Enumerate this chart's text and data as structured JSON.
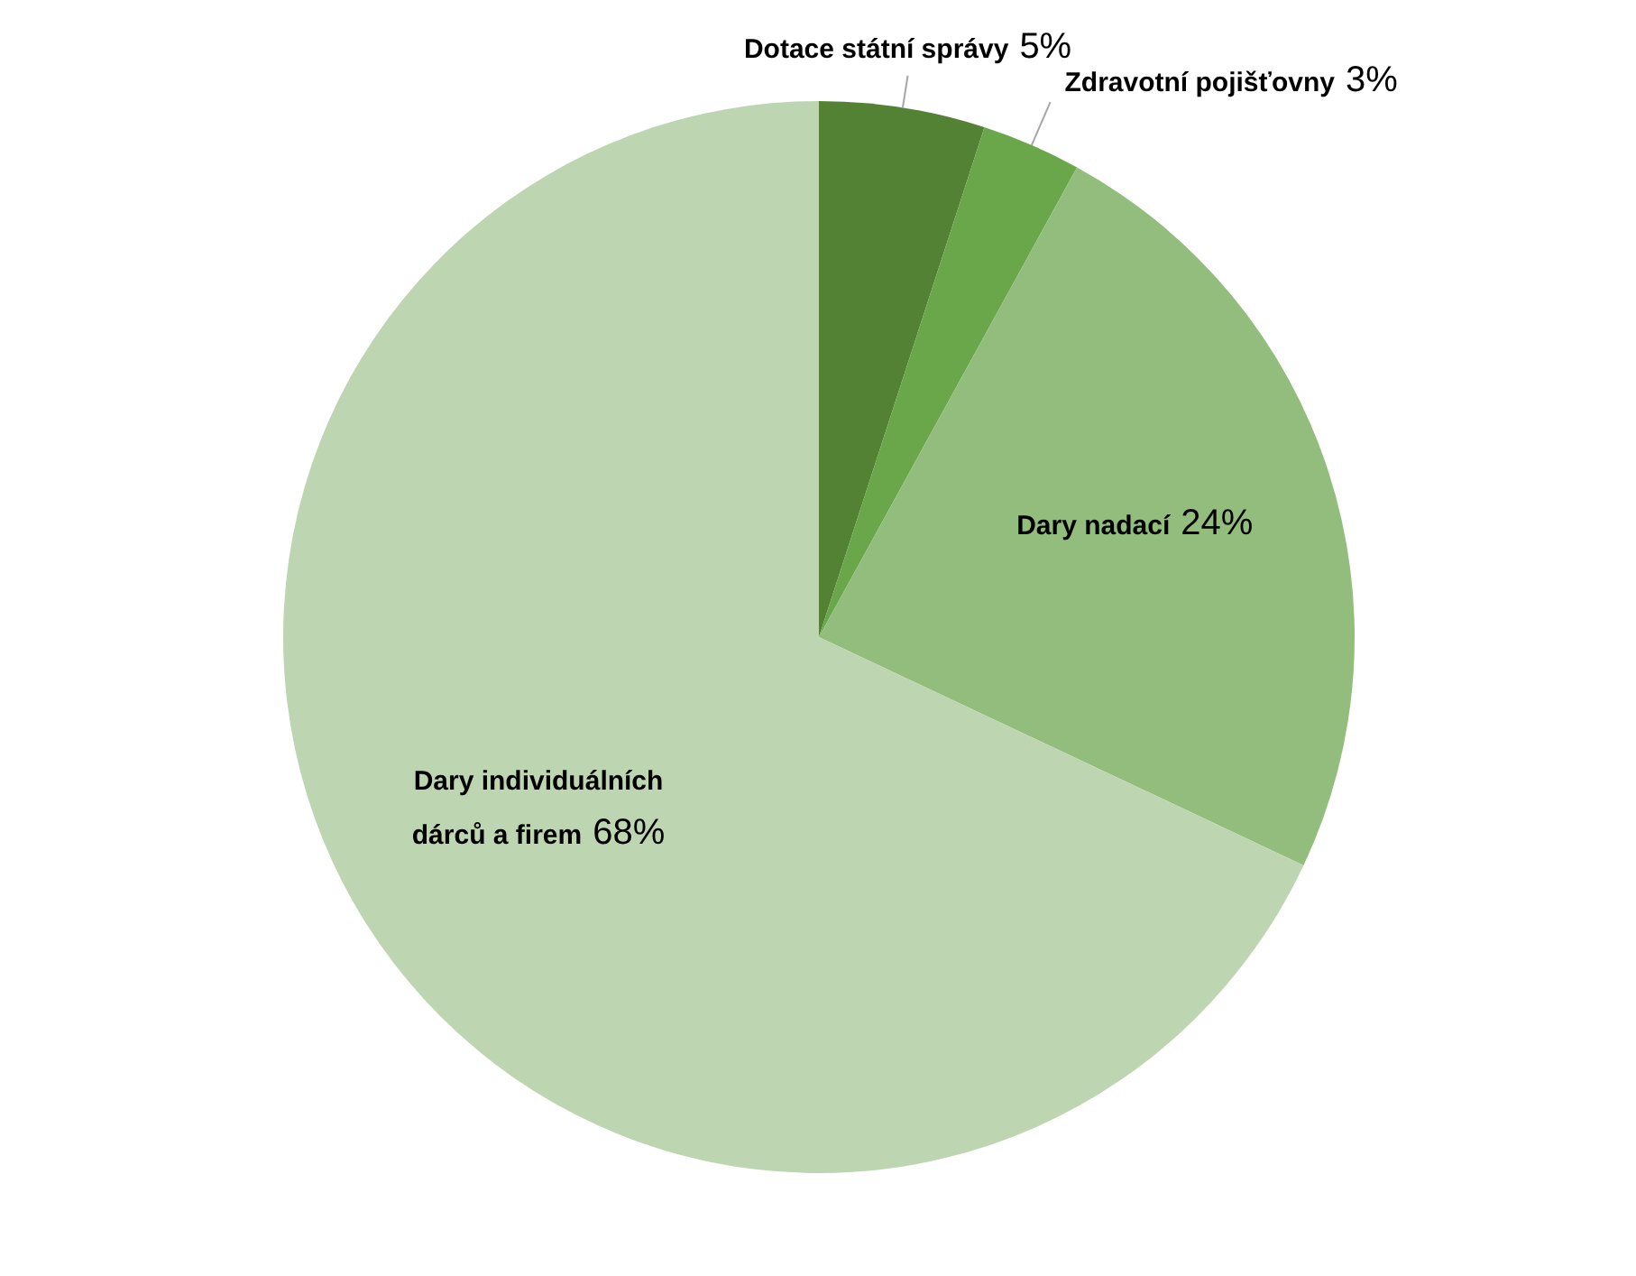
{
  "chart_data": {
    "type": "pie",
    "categories": [
      "Dotace státní správy",
      "Zdravotní pojišťovny",
      "Dary nadací",
      "Dary individuálních dárců a firem"
    ],
    "values": [
      5,
      3,
      24,
      68
    ],
    "colors": [
      "#548235",
      "#6aa64a",
      "#93bd7c",
      "#bed5b2"
    ],
    "value_labels": [
      "5%",
      "3%",
      "24%",
      "68%"
    ]
  }
}
